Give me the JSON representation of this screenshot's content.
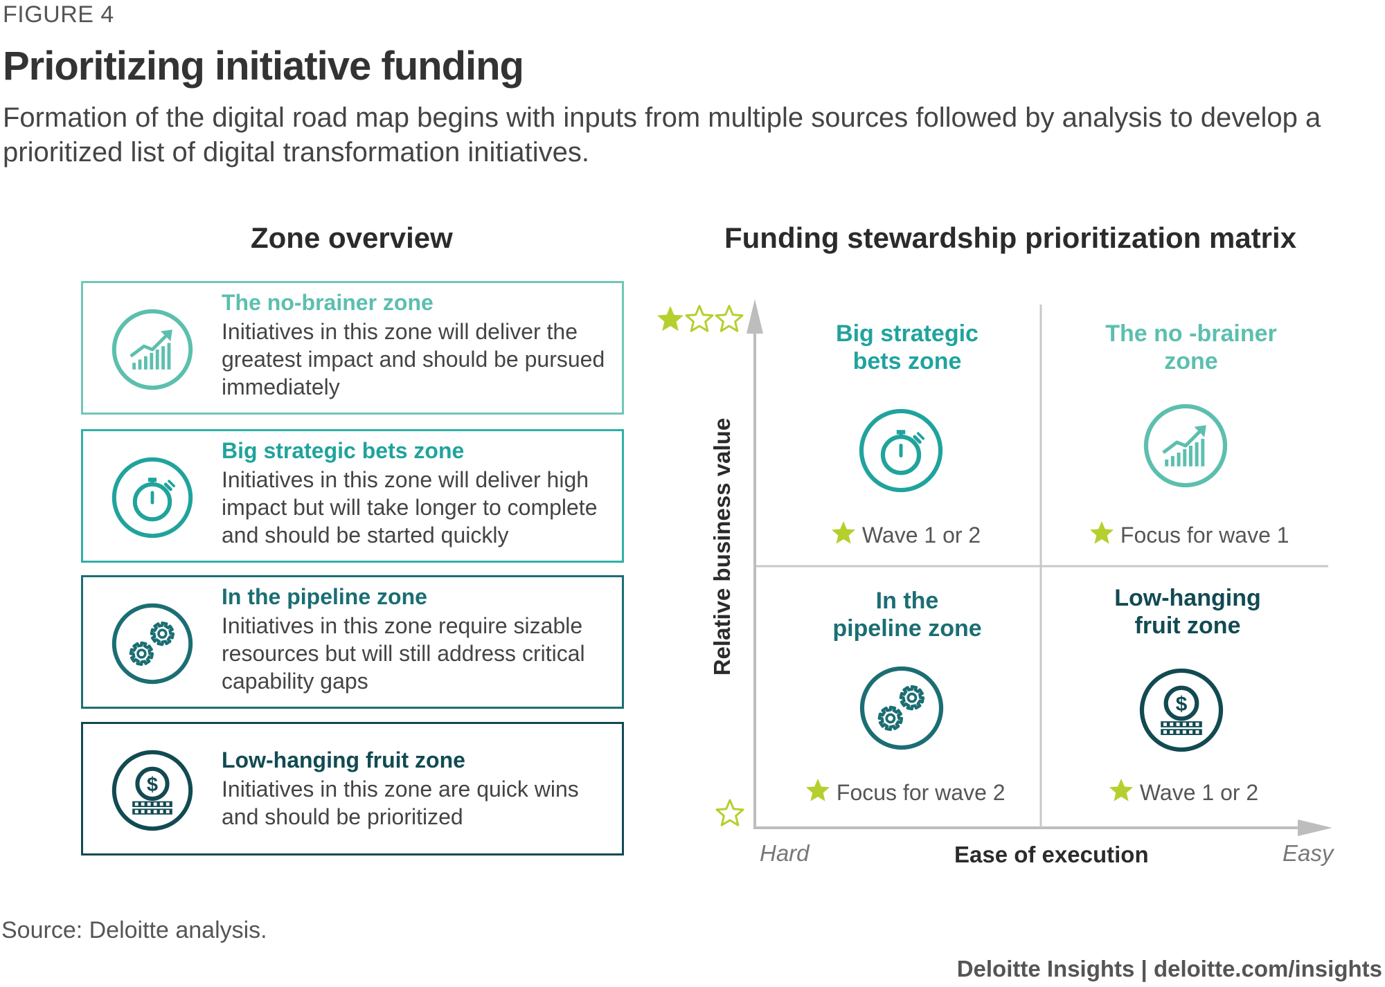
{
  "header": {
    "figure_label": "FIGURE 4",
    "title": "Prioritizing initiative funding",
    "subtitle": "Formation of the digital road map begins with inputs from multiple sources followed by analysis to develop a prioritized list of digital transformation initiatives."
  },
  "zone_overview": {
    "title": "Zone overview",
    "zones": [
      {
        "name": "The no-brainer zone",
        "description": "Initiatives in this zone will deliver the greatest impact and should be pursued immediately",
        "icon": "growth-chart-icon",
        "color": "#5cbfae"
      },
      {
        "name": "Big strategic bets zone",
        "description": "Initiatives in this zone will deliver high impact but will take longer to complete and should be started quickly",
        "icon": "stopwatch-icon",
        "color": "#20a39d"
      },
      {
        "name": "In the pipeline zone",
        "description": "Initiatives in this zone require sizable resources but will still address critical capability gaps",
        "icon": "gears-icon",
        "color": "#1b6e73"
      },
      {
        "name": "Low-hanging fruit zone",
        "description": "Initiatives in this zone are quick wins and should be prioritized",
        "icon": "coin-stack-icon",
        "color": "#124a52"
      }
    ]
  },
  "matrix": {
    "title": "Funding stewardship prioritization matrix",
    "x_axis": {
      "label": "Ease of execution",
      "low": "Hard",
      "high": "Easy"
    },
    "y_axis": {
      "label": "Relative business value",
      "high_rating": "3 stars (1 filled)",
      "low_rating": "1 empty star"
    },
    "star_color": "#b5cf2e",
    "quadrants": {
      "top_left": {
        "title": "Big strategic bets zone",
        "title_lines": [
          "Big strategic",
          "bets zone"
        ],
        "note": "Wave 1 or 2",
        "icon": "stopwatch-icon",
        "color": "#20a39d"
      },
      "top_right": {
        "title": "The no -brainer zone",
        "title_lines": [
          "The no -brainer",
          "zone"
        ],
        "note": "Focus for wave 1",
        "icon": "growth-chart-icon",
        "color": "#5cbfae"
      },
      "bottom_left": {
        "title": "In the pipeline zone",
        "title_lines": [
          "In the",
          "pipeline zone"
        ],
        "note": "Focus for wave 2",
        "icon": "gears-icon",
        "color": "#1b6e73"
      },
      "bottom_right": {
        "title": "Low-hanging fruit zone",
        "title_lines": [
          "Low-hanging",
          "fruit zone"
        ],
        "note": "Wave 1 or 2",
        "icon": "coin-stack-icon",
        "color": "#124a52"
      }
    }
  },
  "footer": {
    "source": "Source: Deloitte analysis.",
    "brand": "Deloitte Insights | deloitte.com/insights"
  }
}
